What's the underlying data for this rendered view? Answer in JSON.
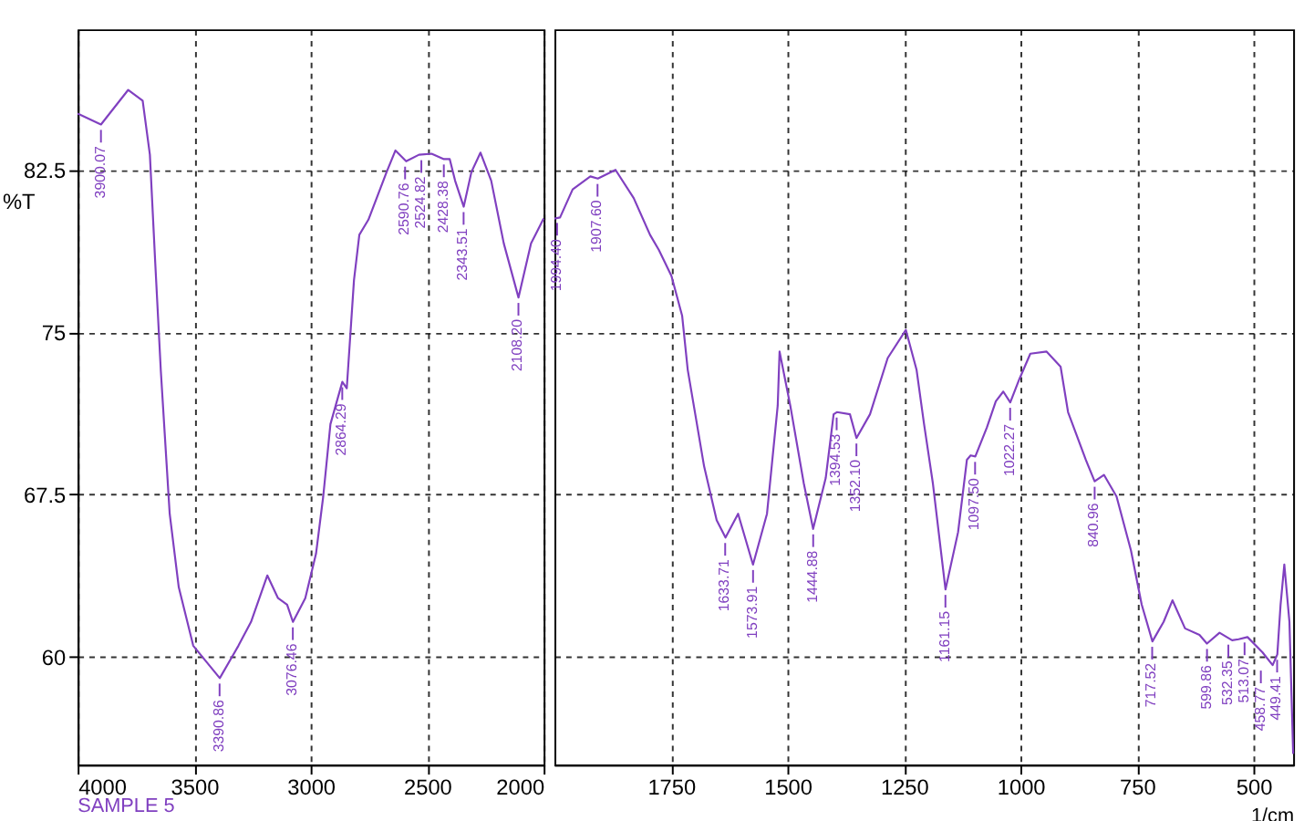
{
  "chart_data": [
    {
      "type": "line",
      "ylabel": "%T",
      "xlim": [
        4000,
        2000
      ],
      "xticks": [
        4000,
        3500,
        3000,
        2500,
        2000
      ],
      "ylim": [
        55,
        89
      ],
      "yticks": [
        60,
        67.5,
        75,
        82.5
      ],
      "grid": true,
      "x": [
        4000,
        3900,
        3783,
        3721,
        3690,
        3667,
        3643,
        3605,
        3566,
        3504,
        3390,
        3310,
        3256,
        3186,
        3140,
        3101,
        3076,
        3023,
        2977,
        2946,
        2915,
        2864,
        2845,
        2814,
        2791,
        2752,
        2674,
        2636,
        2590,
        2535,
        2481,
        2428,
        2403,
        2380,
        2343,
        2310,
        2271,
        2225,
        2171,
        2108,
        2054,
        2000
      ],
      "series": [
        {
          "color": "#8040c0",
          "values": [
            85.1,
            84.6,
            86.2,
            85.7,
            83.2,
            78.2,
            73.2,
            66.6,
            63.2,
            60.5,
            59.0,
            60.5,
            61.6,
            63.75,
            62.7,
            62.4,
            61.6,
            62.7,
            64.75,
            67.4,
            70.75,
            72.7,
            72.4,
            77.4,
            79.5,
            80.2,
            82.4,
            83.4,
            82.9,
            83.2,
            83.25,
            83.0,
            83.0,
            82.0,
            80.8,
            82.4,
            83.3,
            82.0,
            79.1,
            76.6,
            79.1,
            80.25
          ]
        }
      ],
      "annotations": [
        {
          "text": "3900.07",
          "x": 3900.07,
          "y": 84.6
        },
        {
          "text": "3390.86",
          "x": 3390.86,
          "y": 59.0
        },
        {
          "text": "3076.46",
          "x": 3076.46,
          "y": 61.6
        },
        {
          "text": "2864.29",
          "x": 2864.29,
          "y": 72.7
        },
        {
          "text": "2590.76",
          "x": 2590.76,
          "y": 82.9
        },
        {
          "text": "2524.82",
          "x": 2524.82,
          "y": 83.2
        },
        {
          "text": "2428.38",
          "x": 2428.38,
          "y": 83.0
        },
        {
          "text": "2343.51",
          "x": 2343.51,
          "y": 80.8
        },
        {
          "text": "2108.20",
          "x": 2108.2,
          "y": 76.6
        },
        "SAMPLE 5"
      ]
    },
    {
      "type": "line",
      "xlabel": "1/cm",
      "xlim": [
        2000,
        415
      ],
      "xticks": [
        1750,
        1500,
        1250,
        1000,
        750,
        500
      ],
      "ylim": [
        55,
        89
      ],
      "yticks": [
        60,
        67.5,
        75,
        82.5
      ],
      "grid": true,
      "tick_labels": "x",
      "x": [
        2000,
        1988,
        1961,
        1923,
        1907,
        1869,
        1830,
        1795,
        1776,
        1749,
        1726,
        1714,
        1679,
        1652,
        1633,
        1606,
        1574,
        1544,
        1521,
        1517,
        1494,
        1465,
        1445,
        1418,
        1401,
        1394,
        1366,
        1352,
        1323,
        1285,
        1246,
        1223,
        1207,
        1188,
        1161,
        1134,
        1115,
        1107,
        1097,
        1072,
        1053,
        1037,
        1022,
        1003,
        979,
        944,
        914,
        898,
        860,
        841,
        821,
        794,
        763,
        740,
        717,
        693,
        674,
        647,
        616,
        600,
        573,
        546,
        532,
        513,
        481,
        459,
        449,
        442,
        434,
        423,
        415
      ],
      "series": [
        {
          "color": "#8040c0",
          "values": [
            80.25,
            80.3,
            81.6,
            82.2,
            82.1,
            82.5,
            81.2,
            79.5,
            78.8,
            77.6,
            75.75,
            73.25,
            68.8,
            66.3,
            65.5,
            66.6,
            64.25,
            66.6,
            71.6,
            74.1,
            71.6,
            68.0,
            65.9,
            68.25,
            71.2,
            71.3,
            71.2,
            70.1,
            71.2,
            73.8,
            75.1,
            73.25,
            70.75,
            68.0,
            63.1,
            65.75,
            69.1,
            69.3,
            69.25,
            70.6,
            71.8,
            72.25,
            71.75,
            72.8,
            74.0,
            74.1,
            73.4,
            71.3,
            69.1,
            68.1,
            68.4,
            67.4,
            64.9,
            62.4,
            60.7,
            61.6,
            62.6,
            61.3,
            61.0,
            60.6,
            61.1,
            60.75,
            60.8,
            60.9,
            60.2,
            59.6,
            60.1,
            62.4,
            64.25,
            61.6,
            55.5
          ]
        }
      ],
      "annotations": [
        {
          "text": "1994.40",
          "x": 1994.4,
          "y": 80.3
        },
        {
          "text": "1907.60",
          "x": 1907.6,
          "y": 82.1
        },
        {
          "text": "1633.71",
          "x": 1633.71,
          "y": 65.5
        },
        {
          "text": "1573.91",
          "x": 1573.91,
          "y": 64.25
        },
        {
          "text": "1444.88",
          "x": 1444.88,
          "y": 65.9
        },
        {
          "text": "1394.53",
          "x": 1394.53,
          "y": 71.3
        },
        {
          "text": "1352.10",
          "x": 1352.1,
          "y": 70.1
        },
        {
          "text": "1161.15",
          "x": 1161.15,
          "y": 63.1
        },
        {
          "text": "1097.50",
          "x": 1097.5,
          "y": 69.25
        },
        {
          "text": "1022.27",
          "x": 1022.27,
          "y": 71.75
        },
        {
          "text": "840.96",
          "x": 840.96,
          "y": 68.1
        },
        {
          "text": "717.52",
          "x": 717.52,
          "y": 60.7
        },
        {
          "text": "599.86",
          "x": 599.86,
          "y": 60.6
        },
        {
          "text": "532.35",
          "x": 532.35,
          "y": 60.8
        },
        {
          "text": "513.07",
          "x": 513.07,
          "y": 60.9
        },
        {
          "text": "458.77",
          "x": 458.77,
          "y": 59.6
        },
        {
          "text": "449.41",
          "x": 449.41,
          "y": 60.1
        }
      ]
    }
  ]
}
